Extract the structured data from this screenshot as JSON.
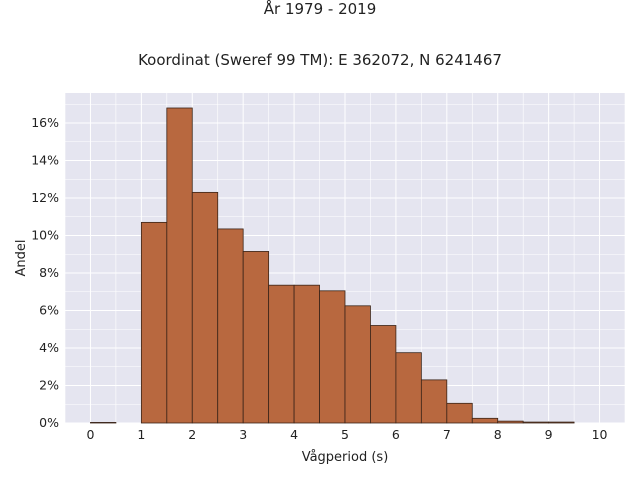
{
  "chart_data": {
    "type": "bar",
    "title": "År 1979 - 2019",
    "subtitle": "Koordinat (Sweref 99 TM): E 362072, N 6241467",
    "xlabel": "Vågperiod (s)",
    "ylabel": "Andel",
    "bin_width": 0.5,
    "bins": [
      0,
      0.5,
      1,
      1.5,
      2,
      2.5,
      3,
      3.5,
      4,
      4.5,
      5,
      5.5,
      6,
      6.5,
      7,
      7.5,
      8,
      8.5,
      9
    ],
    "values": [
      0.03,
      0,
      10.7,
      16.8,
      12.3,
      10.35,
      9.15,
      7.35,
      7.35,
      7.05,
      6.25,
      5.2,
      3.75,
      2.3,
      1.05,
      0.25,
      0.1,
      0.05,
      0.05
    ],
    "xlim": [
      -0.5,
      10.5
    ],
    "ylim": [
      0,
      17.6
    ],
    "xticks": [
      0,
      1,
      2,
      3,
      4,
      5,
      6,
      7,
      8,
      9,
      10
    ],
    "yticks": [
      0,
      2,
      4,
      6,
      8,
      10,
      12,
      14,
      16
    ],
    "ytick_suffix": "%",
    "grid": true,
    "colors": {
      "bar_fill": "#b8683f",
      "bar_stroke": "#3a2418",
      "plot_bg": "#e5e5f0",
      "grid": "#ffffff"
    }
  }
}
